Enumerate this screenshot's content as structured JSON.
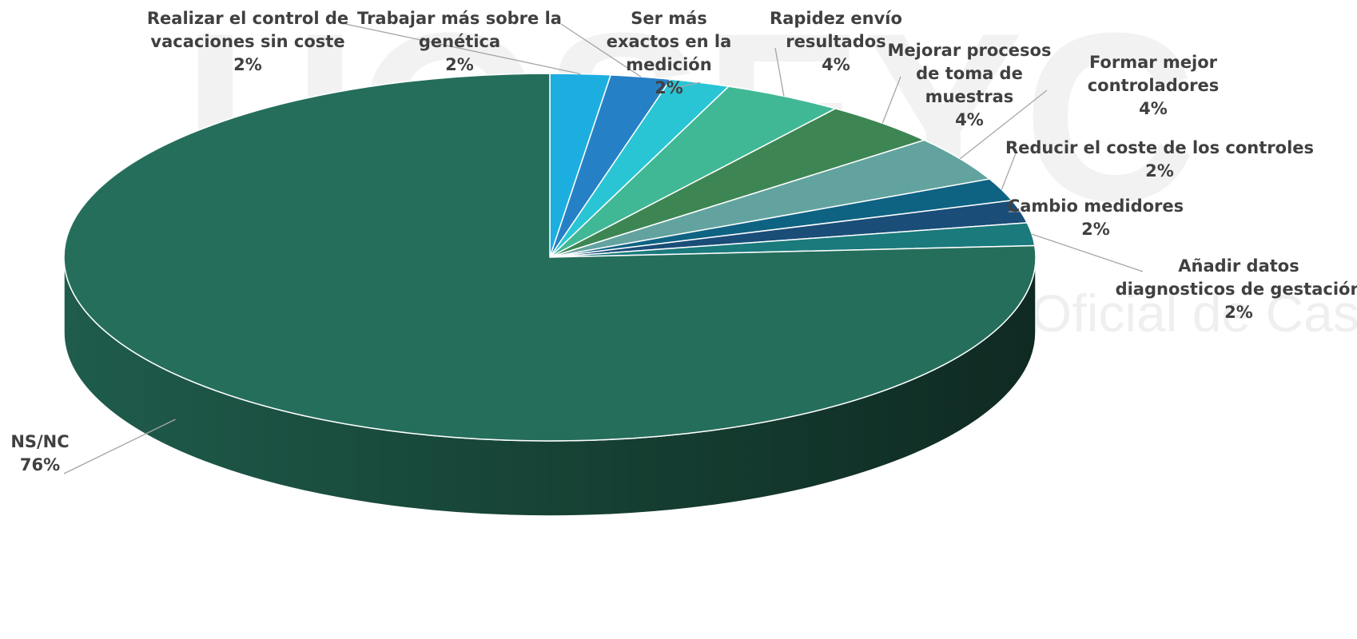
{
  "chart_data": {
    "type": "pie",
    "title": "",
    "start_angle_deg": 90,
    "direction": "clockwise",
    "three_d": true,
    "slices": [
      {
        "label": "Realizar el control de vacaciones sin coste",
        "lines": [
          "Realizar el control de",
          "vacaciones sin coste"
        ],
        "pct_label": "2%",
        "value": 2,
        "color": "#1daee0"
      },
      {
        "label": "Trabajar más sobre la genética",
        "lines": [
          "Trabajar más sobre la",
          "genética"
        ],
        "pct_label": "2%",
        "value": 2,
        "color": "#2680c6"
      },
      {
        "label": "Ser más exactos en la medición",
        "lines": [
          "Ser más",
          "exactos en la",
          "medición"
        ],
        "pct_label": "2%",
        "value": 2,
        "color": "#29c5d5"
      },
      {
        "label": "Rapidez envío resultados",
        "lines": [
          "Rapidez envío",
          "resultados"
        ],
        "pct_label": "4%",
        "value": 4,
        "color": "#40b896"
      },
      {
        "label": "Mejorar procesos de toma de muestras",
        "lines": [
          "Mejorar procesos",
          "de toma de",
          "muestras"
        ],
        "pct_label": "4%",
        "value": 4,
        "color": "#3d8653"
      },
      {
        "label": "Formar mejor controladores",
        "lines": [
          "Formar mejor",
          "controladores"
        ],
        "pct_label": "4%",
        "value": 4,
        "color": "#62a39f"
      },
      {
        "label": "Reducir el coste de los controles",
        "lines": [
          "Reducir el coste de los controles"
        ],
        "pct_label": "2%",
        "value": 2,
        "color": "#0e6383"
      },
      {
        "label": "Cambio medidores",
        "lines": [
          "Cambio medidores"
        ],
        "pct_label": "2%",
        "value": 2,
        "color": "#1a4d78"
      },
      {
        "label": "Añadir datos diagnosticos de gestación",
        "lines": [
          "Añadir datos",
          "diagnosticos de gestación"
        ],
        "pct_label": "2%",
        "value": 2,
        "color": "#1a7a7c"
      },
      {
        "label": "NS/NC",
        "lines": [
          "NS/NC"
        ],
        "pct_label": "76%",
        "value": 76,
        "color": "#256e5c"
      }
    ]
  },
  "watermark": {
    "big": "UGSEYC",
    "small": "Oficial de Castilla"
  }
}
